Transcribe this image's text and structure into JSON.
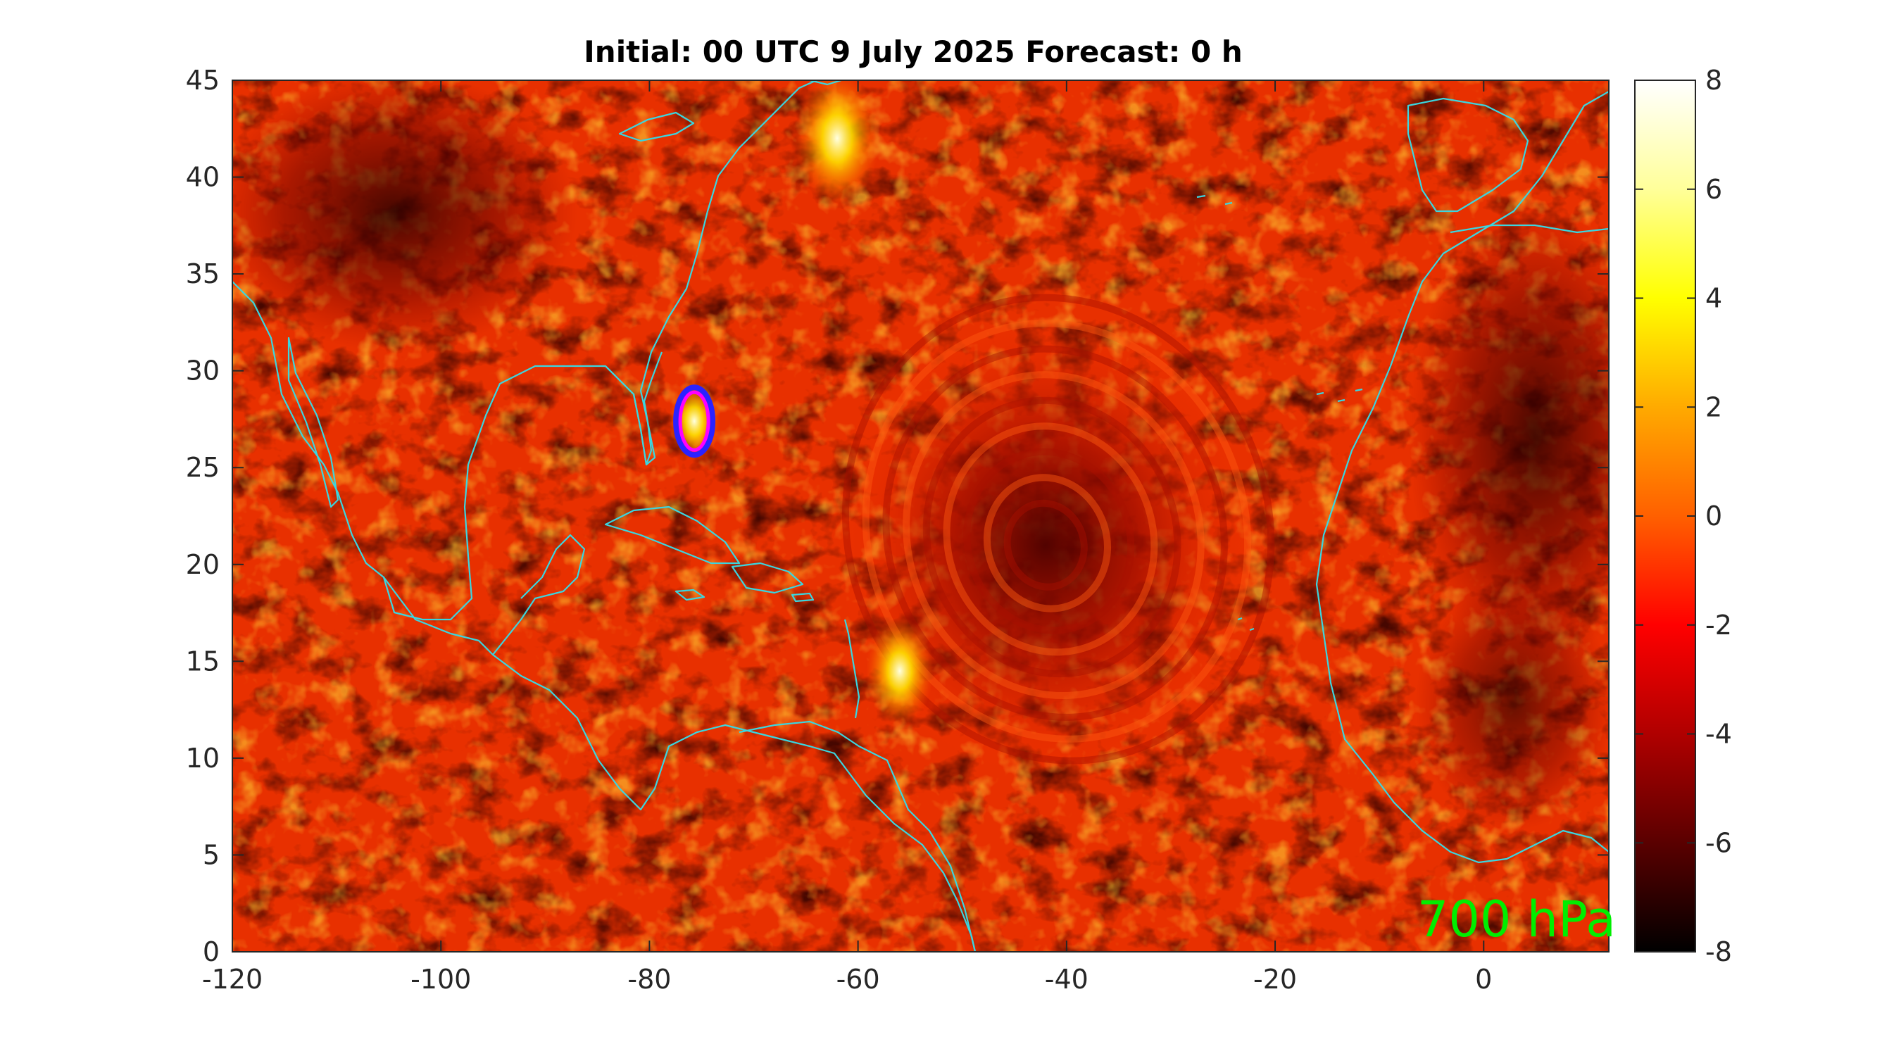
{
  "title": "Initial: 00 UTC 9 July 2025 Forecast: 0 h",
  "level_label": "700 hPa",
  "colors": {
    "coastline": "#3ad6e0",
    "marker_outer": "#2a22ff",
    "marker_inner": "#ff00ff",
    "level_label": "#00ee00"
  },
  "chart_data": {
    "type": "heatmap",
    "title": "Initial: 00 UTC 9 July 2025 Forecast: 0 h",
    "xlim": [
      -120,
      12
    ],
    "ylim": [
      0,
      45
    ],
    "xticks": [
      -120,
      -100,
      -80,
      -60,
      -40,
      -20,
      0
    ],
    "xtick_labels": [
      "-120",
      "-100",
      "-80",
      "-60",
      "-40",
      "-20",
      "0"
    ],
    "yticks": [
      0,
      5,
      10,
      15,
      20,
      25,
      30,
      35,
      40,
      45
    ],
    "ytick_labels": [
      "0",
      "5",
      "10",
      "15",
      "20",
      "25",
      "30",
      "35",
      "40",
      "45"
    ],
    "colorbar": {
      "range": [
        -8,
        8
      ],
      "ticks": [
        8,
        6,
        4,
        2,
        0,
        -2,
        -4,
        -6,
        -8
      ],
      "tick_labels": [
        "8",
        "6",
        "4",
        "2",
        "0",
        "-2",
        "-4",
        "-6",
        "-8"
      ],
      "colormap": "hot"
    },
    "marker": {
      "lon": -75.7,
      "lat": 27.4,
      "shape": "ellipse"
    },
    "features": [
      {
        "lon": -42,
        "lat": 21,
        "value": -5,
        "type": "gyre"
      },
      {
        "lon": -56,
        "lat": 14.5,
        "value": 5,
        "type": "warm-spot"
      },
      {
        "lon": -62,
        "lat": 42,
        "value": 7,
        "type": "warm-spot"
      },
      {
        "lon": -75.7,
        "lat": 27.4,
        "value": 3,
        "type": "warm-spot"
      }
    ]
  }
}
